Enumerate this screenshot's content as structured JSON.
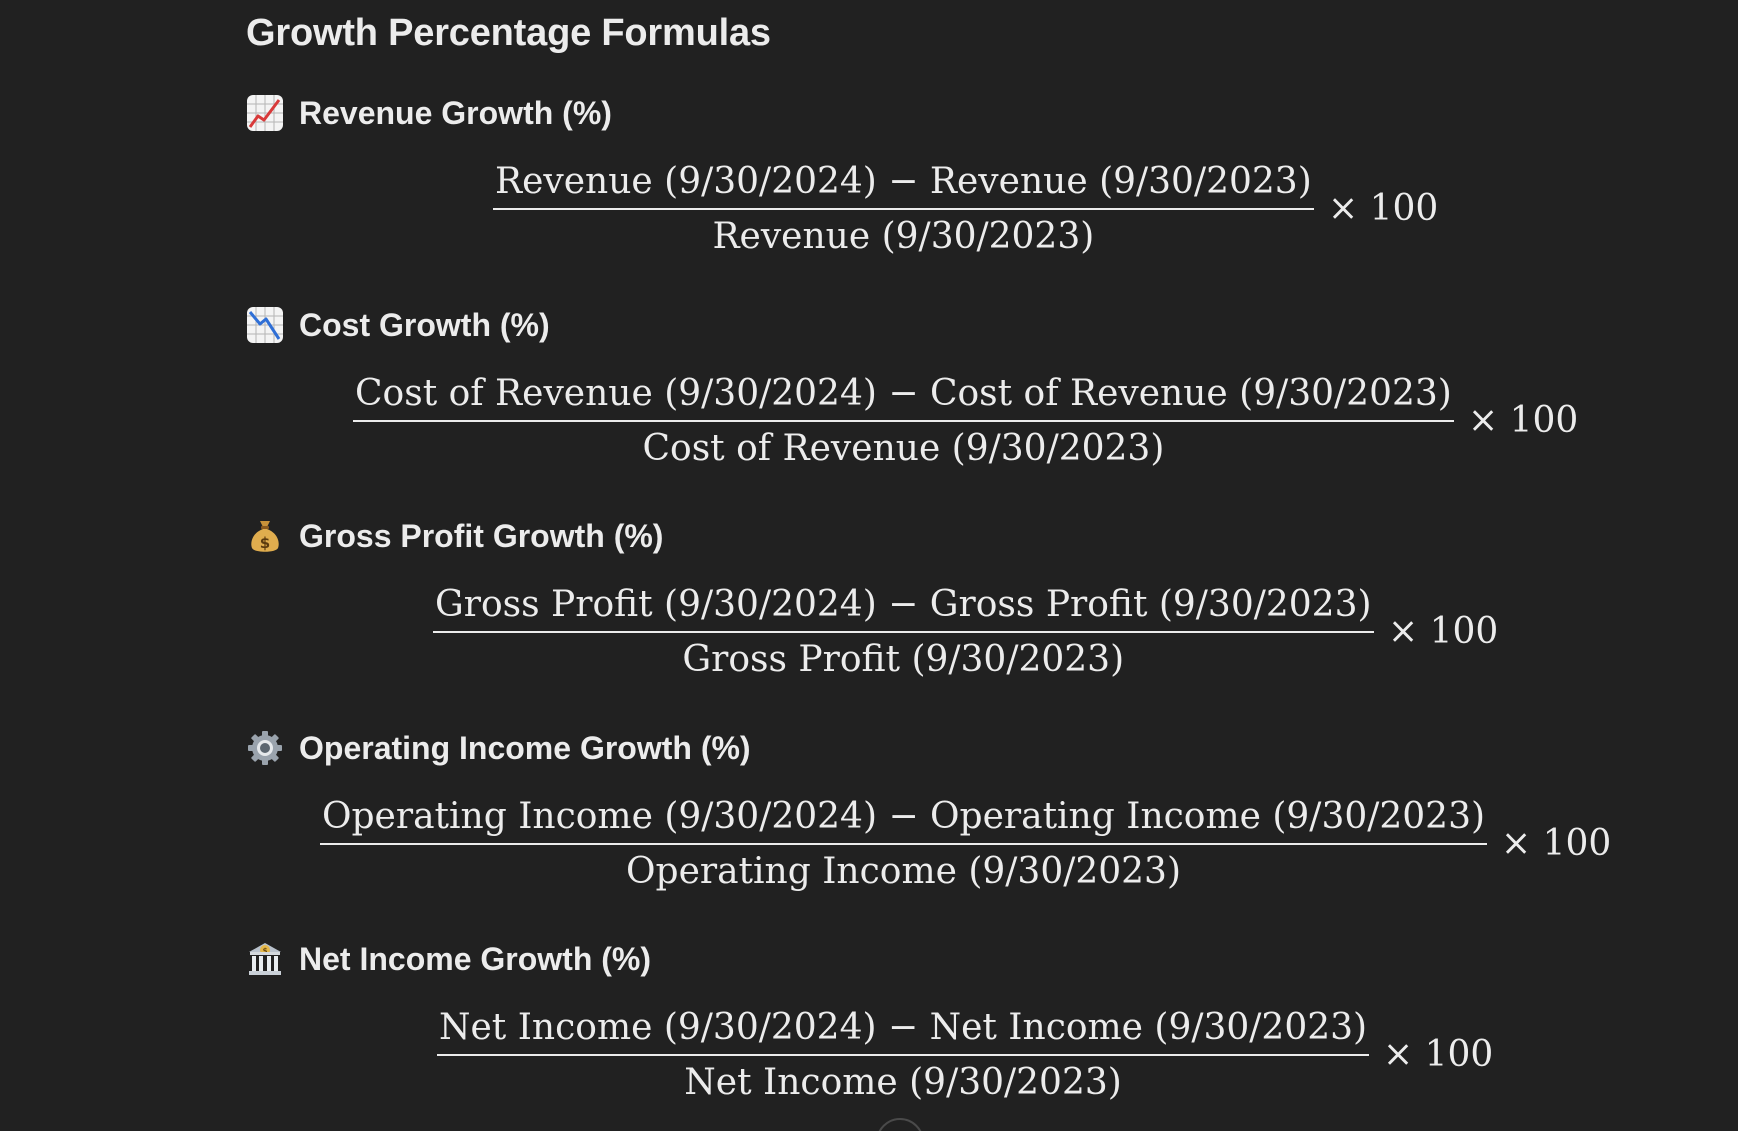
{
  "page": {
    "title": "Growth Percentage Formulas"
  },
  "sections": [
    {
      "label": "Revenue Growth (%)",
      "icon": "chart-increasing-icon",
      "numerator": "Revenue (9/30/2024) − Revenue (9/30/2023)",
      "denominator": "Revenue (9/30/2023)",
      "multiplier": "× 100"
    },
    {
      "label": "Cost Growth (%)",
      "icon": "chart-decreasing-icon",
      "numerator": "Cost of Revenue (9/30/2024) − Cost of Revenue (9/30/2023)",
      "denominator": "Cost of Revenue (9/30/2023)",
      "multiplier": "× 100"
    },
    {
      "label": "Gross Profit Growth (%)",
      "icon": "money-bag-icon",
      "numerator": "Gross Profit (9/30/2024) − Gross Profit (9/30/2023)",
      "denominator": "Gross Profit (9/30/2023)",
      "multiplier": "× 100"
    },
    {
      "label": "Operating Income Growth (%)",
      "icon": "gear-icon",
      "numerator": "Operating Income (9/30/2024) − Operating Income (9/30/2023)",
      "denominator": "Operating Income (9/30/2023)",
      "multiplier": "× 100"
    },
    {
      "label": "Net Income Growth (%)",
      "icon": "bank-icon",
      "numerator": "Net Income (9/30/2024) − Net Income (9/30/2023)",
      "denominator": "Net Income (9/30/2023)",
      "multiplier": "× 100"
    }
  ],
  "colors": {
    "background": "#212121",
    "text": "#ececec"
  }
}
